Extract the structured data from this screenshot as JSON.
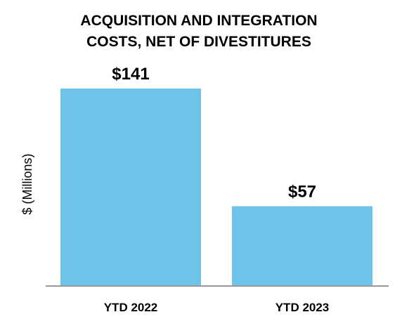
{
  "chart_data": {
    "type": "bar",
    "title_lines": [
      "ACQUISITION AND INTEGRATION",
      "COSTS, NET OF DIVESTITURES"
    ],
    "ylabel": "$ (Millions)",
    "xlabel": "",
    "categories": [
      "YTD 2022",
      "YTD 2023"
    ],
    "values": [
      141,
      57
    ],
    "value_labels": [
      "$141",
      "$57"
    ],
    "ylim": [
      0,
      141
    ],
    "grid": false,
    "legend": "none",
    "colors": {
      "bar": "#70C3E8",
      "axis": "#999999",
      "text": "#000000"
    }
  }
}
